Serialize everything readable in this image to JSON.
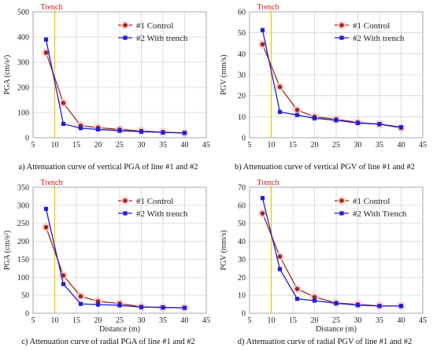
{
  "chart_data": [
    {
      "type": "line",
      "caption": "a) Attenuation curve of vertical PGA of line #1 and #2",
      "annotation": "Trench",
      "annotation_x": 10,
      "xlabel": "",
      "ylabel": "PGA (cm/s²)",
      "xlim": [
        5,
        45
      ],
      "ylim": [
        0,
        500
      ],
      "xticks": [
        5,
        10,
        15,
        20,
        25,
        30,
        35,
        40,
        45
      ],
      "yticks": [
        0,
        100,
        200,
        300,
        400,
        500
      ],
      "grid": true,
      "legend": "top-right",
      "series": [
        {
          "name": "#1 Control",
          "color": "#9b2a1c",
          "marker": "circle",
          "x": [
            8,
            12,
            16,
            20,
            25,
            30,
            35,
            40
          ],
          "y": [
            338,
            138,
            48,
            40,
            33,
            27,
            22,
            19
          ]
        },
        {
          "name": "#2 With trench",
          "color": "#1f1fd6",
          "marker": "square",
          "x": [
            8,
            12,
            16,
            20,
            25,
            30,
            35,
            40
          ],
          "y": [
            390,
            55,
            38,
            33,
            28,
            24,
            21,
            19
          ]
        }
      ]
    },
    {
      "type": "line",
      "caption": "b) Attenuation curve of vertical PGV of line #1 and #2",
      "annotation": "Trench",
      "annotation_x": 10,
      "xlabel": "",
      "ylabel": "PGV (mm/s)",
      "xlim": [
        5,
        45
      ],
      "ylim": [
        0,
        60
      ],
      "xticks": [
        5,
        10,
        15,
        20,
        25,
        30,
        35,
        40,
        45
      ],
      "yticks": [
        0,
        10,
        20,
        30,
        40,
        50,
        60
      ],
      "grid": true,
      "legend": "top-right",
      "series": [
        {
          "name": "#1 Control",
          "color": "#9b2a1c",
          "marker": "circle",
          "x": [
            8,
            12,
            16,
            20,
            25,
            30,
            35,
            40
          ],
          "y": [
            44.5,
            24.2,
            13.2,
            10.0,
            8.8,
            7.3,
            6.4,
            4.7
          ]
        },
        {
          "name": "#2 With trench",
          "color": "#1f1fd6",
          "marker": "square",
          "x": [
            8,
            12,
            16,
            20,
            25,
            30,
            35,
            40
          ],
          "y": [
            51.3,
            12.3,
            10.8,
            9.3,
            8.3,
            7.0,
            6.5,
            5.0
          ]
        }
      ]
    },
    {
      "type": "line",
      "caption": "c) Attenuation curve of radial PGA of line #1 and #2",
      "annotation": "Trench",
      "annotation_x": 10,
      "xlabel": "Distance (m)",
      "ylabel": "PGA (cm/s²)",
      "xlim": [
        5,
        45
      ],
      "ylim": [
        0,
        350
      ],
      "xticks": [
        5,
        10,
        15,
        20,
        25,
        30,
        35,
        40,
        45
      ],
      "yticks": [
        0,
        50,
        100,
        150,
        200,
        250,
        300,
        350
      ],
      "grid": true,
      "legend": "top-right",
      "series": [
        {
          "name": "#1 Control",
          "color": "#9b2a1c",
          "marker": "circle",
          "x": [
            8,
            12,
            16,
            20,
            25,
            30,
            35,
            40
          ],
          "y": [
            239,
            105,
            47,
            33,
            27,
            18,
            16,
            15
          ]
        },
        {
          "name": "#2 With trench",
          "color": "#1f1fd6",
          "marker": "square",
          "x": [
            8,
            12,
            16,
            20,
            25,
            30,
            35,
            40
          ],
          "y": [
            290,
            81,
            26,
            24,
            22,
            17,
            16,
            15
          ]
        }
      ]
    },
    {
      "type": "line",
      "caption": "d) Attenuation curve of radial PGV of line #1 and #2",
      "annotation": "Trench",
      "annotation_x": 10,
      "xlabel": "Distance (m)",
      "ylabel": "PGV (mm/s)",
      "xlim": [
        5,
        45
      ],
      "ylim": [
        0,
        70
      ],
      "xticks": [
        5,
        10,
        15,
        20,
        25,
        30,
        35,
        40,
        45
      ],
      "yticks": [
        0,
        10,
        20,
        30,
        40,
        50,
        60,
        70
      ],
      "grid": true,
      "legend": "top-right",
      "series": [
        {
          "name": "#1 Control",
          "color": "#9b2a1c",
          "marker": "circle",
          "x": [
            8,
            12,
            16,
            20,
            25,
            30,
            35,
            40
          ],
          "y": [
            55.5,
            31.5,
            13.5,
            9.0,
            5.7,
            4.9,
            4.1,
            4.0
          ]
        },
        {
          "name": "#2 With Trench",
          "color": "#1f1fd6",
          "marker": "square",
          "x": [
            8,
            12,
            16,
            20,
            25,
            30,
            35,
            40
          ],
          "y": [
            64,
            24.5,
            8.0,
            7.0,
            5.5,
            4.5,
            4.0,
            4.0
          ]
        }
      ]
    }
  ]
}
